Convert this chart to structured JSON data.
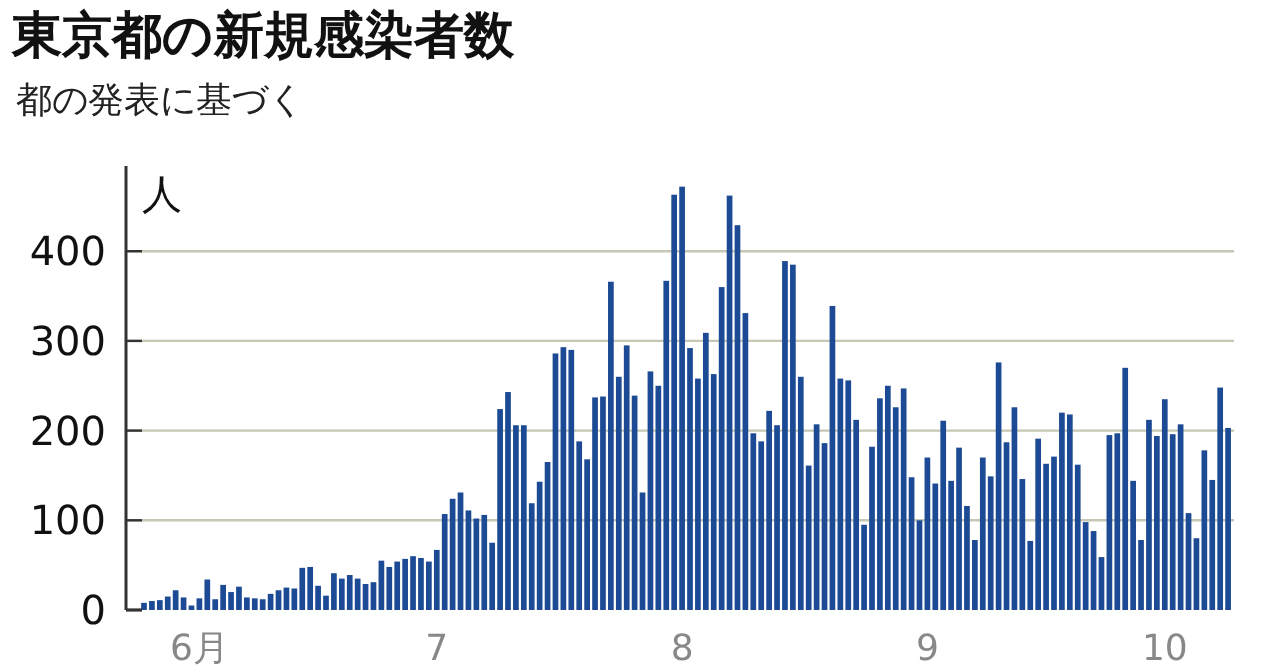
{
  "chart_data": {
    "type": "bar",
    "title": "東京都の新規感染者数",
    "subtitle": "都の発表に基づく",
    "ylabel": "人",
    "categories": [
      null,
      null,
      null,
      null,
      null,
      null,
      null,
      "6月",
      null,
      null,
      null,
      null,
      null,
      null,
      null,
      null,
      null,
      null,
      null,
      null,
      null,
      null,
      null,
      null,
      null,
      null,
      null,
      null,
      null,
      null,
      null,
      null,
      null,
      null,
      null,
      null,
      null,
      "7",
      null,
      null,
      null,
      null,
      null,
      null,
      null,
      null,
      null,
      null,
      null,
      null,
      null,
      null,
      null,
      null,
      null,
      null,
      null,
      null,
      null,
      null,
      null,
      null,
      null,
      null,
      null,
      null,
      null,
      null,
      "8",
      null,
      null,
      null,
      null,
      null,
      null,
      null,
      null,
      null,
      null,
      null,
      null,
      null,
      null,
      null,
      null,
      null,
      null,
      null,
      null,
      null,
      null,
      null,
      null,
      null,
      null,
      null,
      null,
      null,
      null,
      "9",
      null,
      null,
      null,
      null,
      null,
      null,
      null,
      null,
      null,
      null,
      null,
      null,
      null,
      null,
      null,
      null,
      null,
      null,
      null,
      null,
      null,
      null,
      null,
      null,
      null,
      null,
      null,
      null,
      null,
      "10",
      null,
      null,
      null,
      null,
      null,
      null,
      null,
      null
    ],
    "values": [
      8,
      10,
      11,
      15,
      22,
      14,
      5,
      13,
      34,
      12,
      28,
      20,
      26,
      14,
      13,
      12,
      18,
      22,
      25,
      24,
      47,
      48,
      27,
      16,
      41,
      35,
      39,
      35,
      29,
      31,
      55,
      48,
      54,
      57,
      60,
      58,
      54,
      67,
      107,
      124,
      131,
      111,
      102,
      106,
      75,
      224,
      243,
      206,
      206,
      119,
      143,
      165,
      286,
      293,
      290,
      188,
      168,
      237,
      238,
      366,
      260,
      295,
      239,
      131,
      266,
      250,
      367,
      463,
      472,
      292,
      258,
      309,
      263,
      360,
      462,
      429,
      331,
      197,
      188,
      222,
      206,
      389,
      385,
      260,
      161,
      207,
      186,
      339,
      258,
      256,
      212,
      95,
      182,
      236,
      250,
      226,
      247,
      148,
      100,
      170,
      141,
      211,
      144,
      181,
      116,
      78,
      170,
      149,
      276,
      187,
      226,
      146,
      77,
      191,
      163,
      171,
      220,
      218,
      162,
      98,
      88,
      59,
      195,
      197,
      270,
      144,
      78,
      212,
      194,
      235,
      196,
      207,
      108,
      80,
      178,
      145,
      248,
      203
    ],
    "color": "#1c4a94",
    "ylim": [
      0,
      495
    ],
    "yticks": [
      0,
      100,
      200,
      300,
      400
    ],
    "grid": "y"
  }
}
